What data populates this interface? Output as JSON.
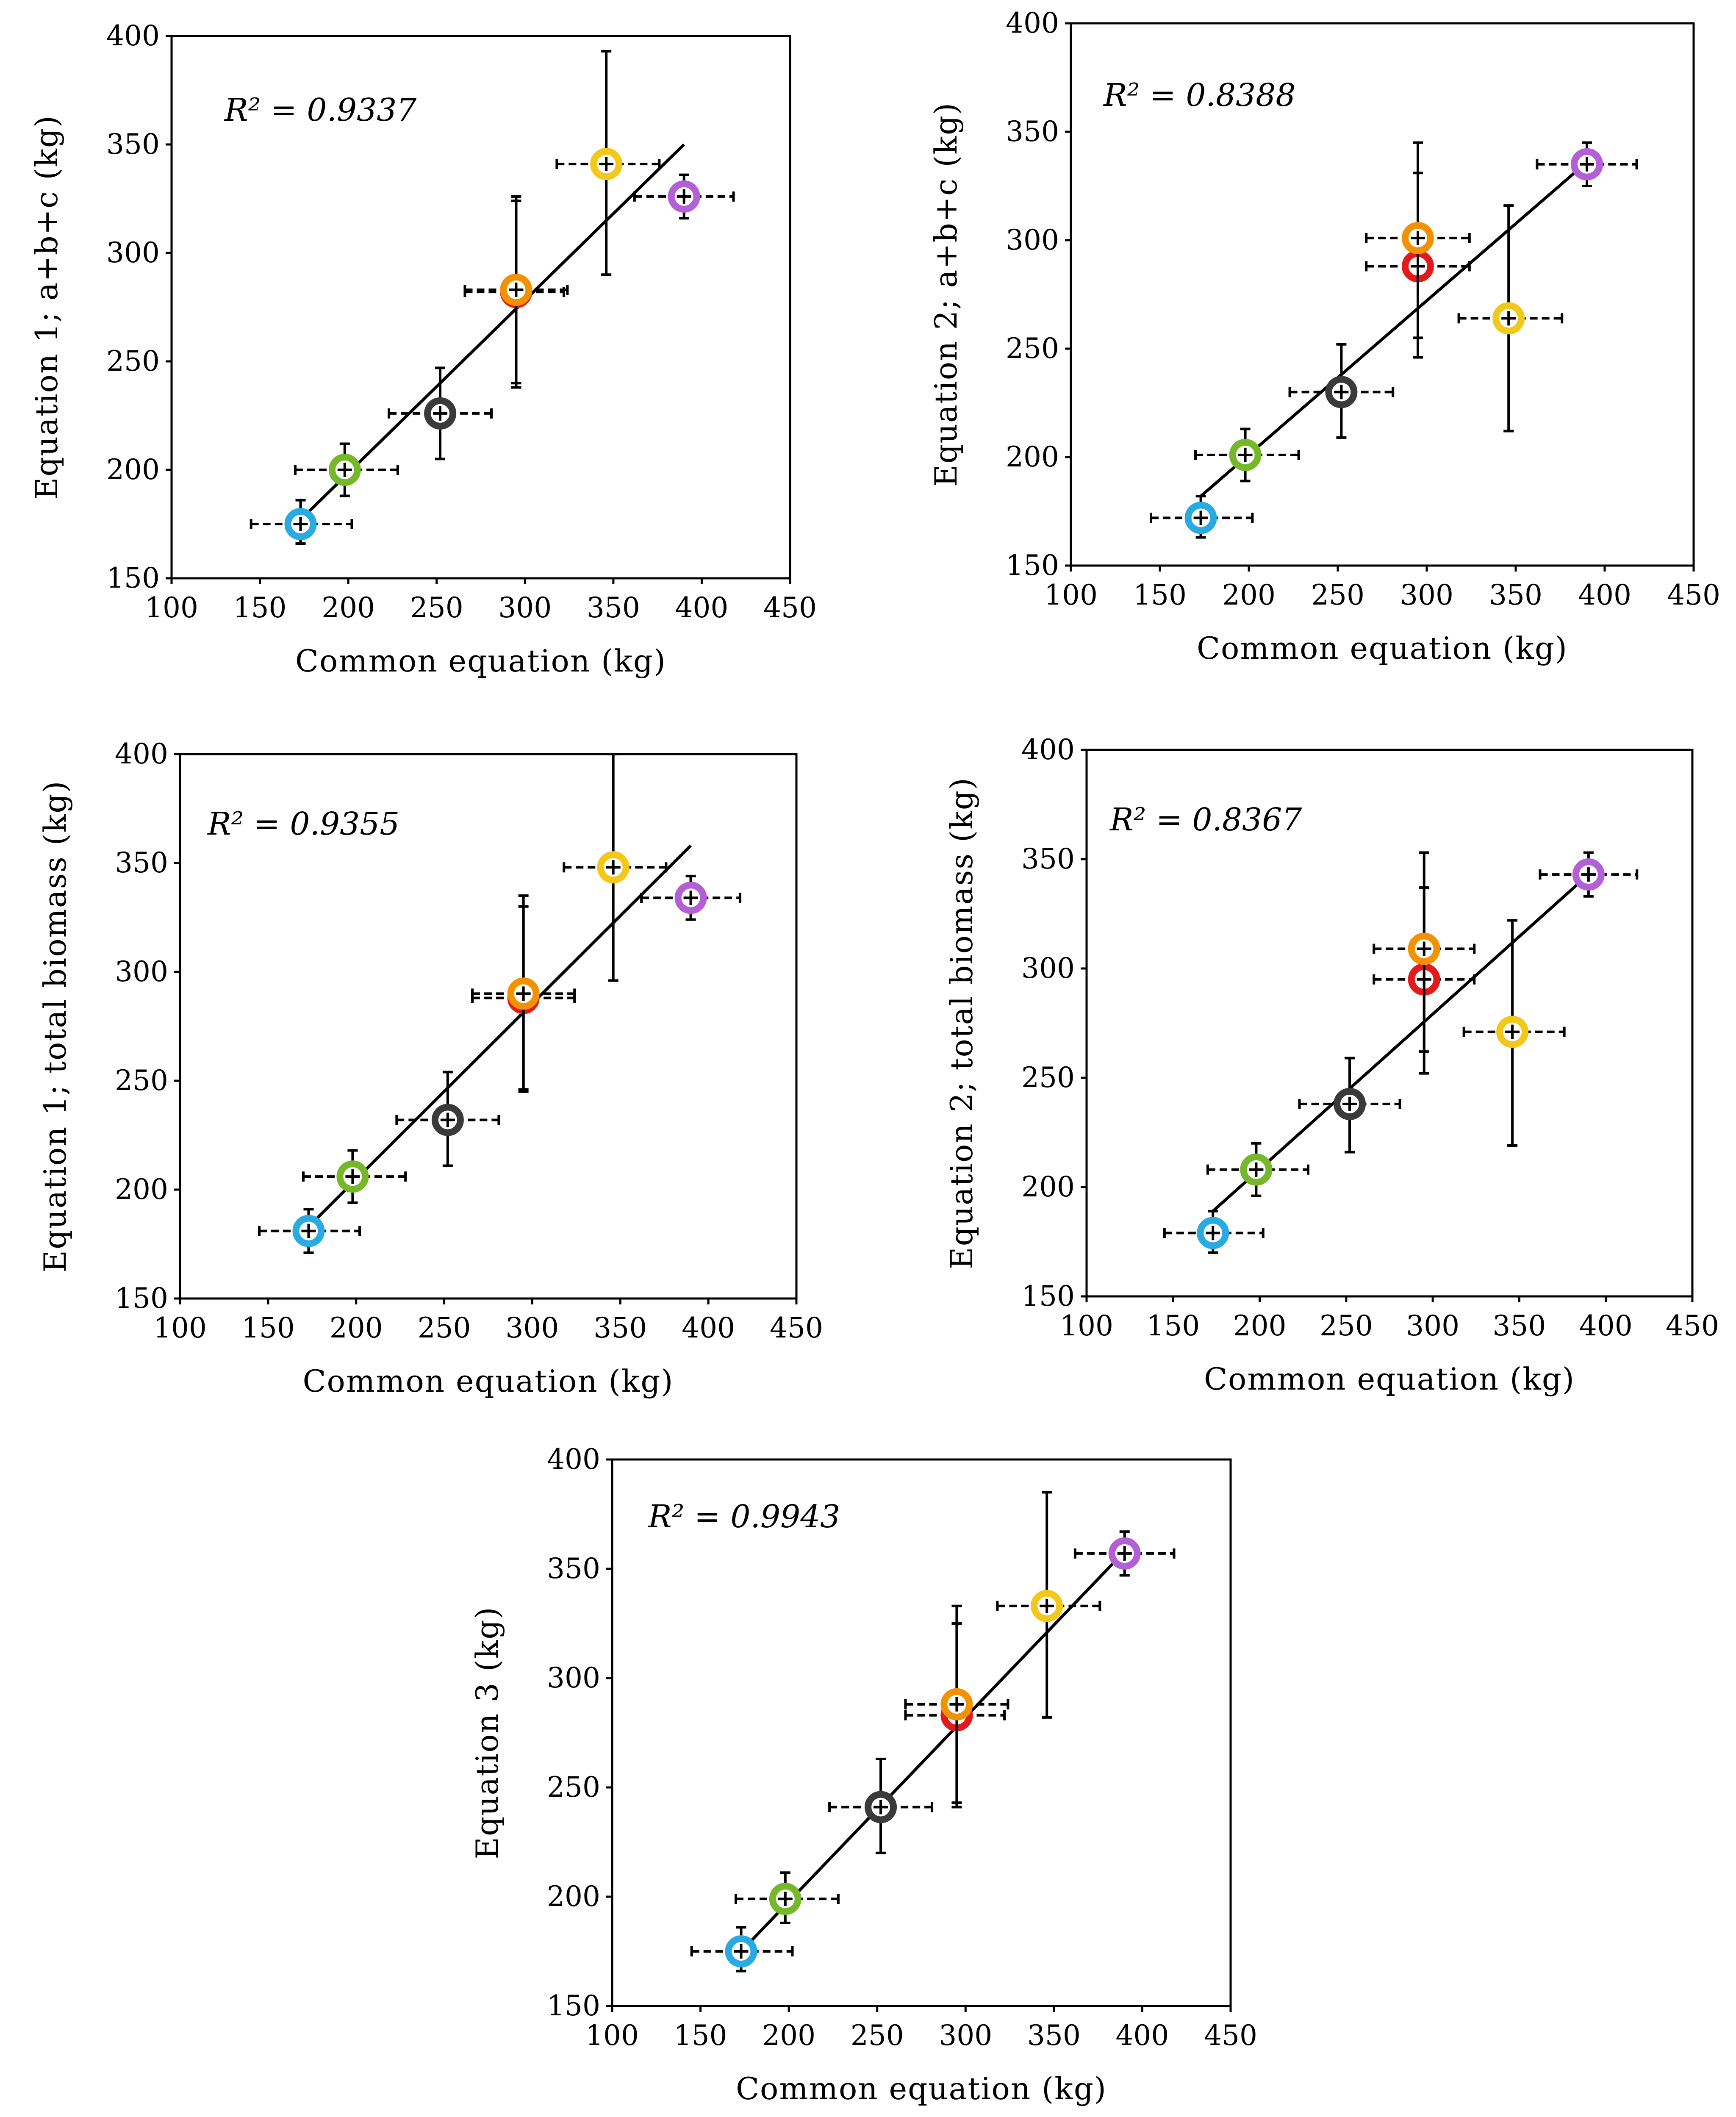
{
  "figure": {
    "colors": {
      "blue": "#29abe2",
      "green": "#76b82a",
      "dark": "#3a3a3a",
      "red": "#e31a1c",
      "orange": "#f39200",
      "yellow": "#f2c81b",
      "purple": "#b35fd6",
      "axis": "#000000"
    }
  },
  "chart_data": [
    {
      "type": "scatter",
      "title": "",
      "xlabel": "Common equation (kg)",
      "ylabel": "Equation 1; a+b+c (kg)",
      "xlim": [
        100,
        450
      ],
      "ylim": [
        150,
        400
      ],
      "xticks": [
        "100",
        "150",
        "200",
        "250",
        "300",
        "350",
        "400",
        "450"
      ],
      "yticks": [
        "150",
        "200",
        "250",
        "300",
        "350",
        "400"
      ],
      "r2_label": "R² = 0.9337",
      "trendline": {
        "x": [
          173,
          390
        ],
        "y": [
          177,
          350
        ]
      },
      "series": [
        {
          "name": "blue",
          "color": "#29abe2",
          "x": 173,
          "y": 175,
          "xerr": [
            145,
            202
          ],
          "yerr": [
            166,
            186
          ]
        },
        {
          "name": "green",
          "color": "#76b82a",
          "x": 198,
          "y": 200,
          "xerr": [
            170,
            228
          ],
          "yerr": [
            188,
            212
          ]
        },
        {
          "name": "dark",
          "color": "#3a3a3a",
          "x": 252,
          "y": 226,
          "xerr": [
            223,
            281
          ],
          "yerr": [
            205,
            247
          ]
        },
        {
          "name": "red",
          "color": "#e31a1c",
          "x": 295,
          "y": 282,
          "xerr": [
            266,
            322
          ],
          "yerr": [
            238,
            326
          ]
        },
        {
          "name": "orange",
          "color": "#f39200",
          "x": 295,
          "y": 283,
          "xerr": [
            266,
            324
          ],
          "yerr": [
            240,
            324
          ]
        },
        {
          "name": "yellow",
          "color": "#f2c81b",
          "x": 346,
          "y": 341,
          "xerr": [
            318,
            376
          ],
          "yerr": [
            290,
            393
          ]
        },
        {
          "name": "purple",
          "color": "#b35fd6",
          "x": 390,
          "y": 326,
          "xerr": [
            362,
            418
          ],
          "yerr": [
            316,
            336
          ]
        }
      ]
    },
    {
      "type": "scatter",
      "title": "",
      "xlabel": "Common equation (kg)",
      "ylabel": "Equation 2; a+b+c (kg)",
      "xlim": [
        100,
        450
      ],
      "ylim": [
        150,
        400
      ],
      "xticks": [
        "100",
        "150",
        "200",
        "250",
        "300",
        "350",
        "400",
        "450"
      ],
      "yticks": [
        "150",
        "200",
        "250",
        "300",
        "350",
        "400"
      ],
      "r2_label": "R² = 0.8388",
      "trendline": {
        "x": [
          173,
          390
        ],
        "y": [
          182,
          336
        ]
      },
      "series": [
        {
          "name": "blue",
          "color": "#29abe2",
          "x": 173,
          "y": 172,
          "xerr": [
            145,
            202
          ],
          "yerr": [
            163,
            182
          ]
        },
        {
          "name": "green",
          "color": "#76b82a",
          "x": 198,
          "y": 201,
          "xerr": [
            170,
            228
          ],
          "yerr": [
            189,
            213
          ]
        },
        {
          "name": "dark",
          "color": "#3a3a3a",
          "x": 252,
          "y": 230,
          "xerr": [
            223,
            281
          ],
          "yerr": [
            209,
            252
          ]
        },
        {
          "name": "red",
          "color": "#e31a1c",
          "x": 295,
          "y": 288,
          "xerr": [
            266,
            324
          ],
          "yerr": [
            246,
            331
          ]
        },
        {
          "name": "orange",
          "color": "#f39200",
          "x": 295,
          "y": 301,
          "xerr": [
            266,
            324
          ],
          "yerr": [
            255,
            345
          ]
        },
        {
          "name": "yellow",
          "color": "#f2c81b",
          "x": 346,
          "y": 264,
          "xerr": [
            318,
            376
          ],
          "yerr": [
            212,
            316
          ]
        },
        {
          "name": "purple",
          "color": "#b35fd6",
          "x": 390,
          "y": 335,
          "xerr": [
            362,
            418
          ],
          "yerr": [
            325,
            345
          ]
        }
      ]
    },
    {
      "type": "scatter",
      "title": "",
      "xlabel": "Common equation (kg)",
      "ylabel": "Equation 1; total biomass (kg)",
      "xlim": [
        100,
        450
      ],
      "ylim": [
        150,
        400
      ],
      "xticks": [
        "100",
        "150",
        "200",
        "250",
        "300",
        "350",
        "400",
        "450"
      ],
      "yticks": [
        "150",
        "200",
        "250",
        "300",
        "350",
        "400"
      ],
      "r2_label": "R² = 0.9355",
      "trendline": {
        "x": [
          173,
          390
        ],
        "y": [
          183,
          358
        ]
      },
      "series": [
        {
          "name": "blue",
          "color": "#29abe2",
          "x": 173,
          "y": 181,
          "xerr": [
            145,
            202
          ],
          "yerr": [
            171,
            191
          ]
        },
        {
          "name": "green",
          "color": "#76b82a",
          "x": 198,
          "y": 206,
          "xerr": [
            170,
            228
          ],
          "yerr": [
            194,
            218
          ]
        },
        {
          "name": "dark",
          "color": "#3a3a3a",
          "x": 252,
          "y": 232,
          "xerr": [
            223,
            281
          ],
          "yerr": [
            211,
            254
          ]
        },
        {
          "name": "red",
          "color": "#e31a1c",
          "x": 295,
          "y": 288,
          "xerr": [
            266,
            324
          ],
          "yerr": [
            246,
            330
          ]
        },
        {
          "name": "orange",
          "color": "#f39200",
          "x": 295,
          "y": 290,
          "xerr": [
            266,
            324
          ],
          "yerr": [
            245,
            335
          ]
        },
        {
          "name": "yellow",
          "color": "#f2c81b",
          "x": 346,
          "y": 348,
          "xerr": [
            318,
            376
          ],
          "yerr": [
            296,
            400
          ]
        },
        {
          "name": "purple",
          "color": "#b35fd6",
          "x": 390,
          "y": 334,
          "xerr": [
            362,
            418
          ],
          "yerr": [
            324,
            344
          ]
        }
      ]
    },
    {
      "type": "scatter",
      "title": "",
      "xlabel": "Common equation (kg)",
      "ylabel": "Equation 2; total biomass (kg)",
      "xlim": [
        100,
        450
      ],
      "ylim": [
        150,
        400
      ],
      "xticks": [
        "100",
        "150",
        "200",
        "250",
        "300",
        "350",
        "400",
        "450"
      ],
      "yticks": [
        "150",
        "200",
        "250",
        "300",
        "350",
        "400"
      ],
      "r2_label": "R² = 0.8367",
      "trendline": {
        "x": [
          173,
          390
        ],
        "y": [
          189,
          343
        ]
      },
      "series": [
        {
          "name": "blue",
          "color": "#29abe2",
          "x": 173,
          "y": 179,
          "xerr": [
            145,
            202
          ],
          "yerr": [
            170,
            189
          ]
        },
        {
          "name": "green",
          "color": "#76b82a",
          "x": 198,
          "y": 208,
          "xerr": [
            170,
            228
          ],
          "yerr": [
            196,
            220
          ]
        },
        {
          "name": "dark",
          "color": "#3a3a3a",
          "x": 252,
          "y": 238,
          "xerr": [
            223,
            281
          ],
          "yerr": [
            216,
            259
          ]
        },
        {
          "name": "red",
          "color": "#e31a1c",
          "x": 295,
          "y": 295,
          "xerr": [
            266,
            324
          ],
          "yerr": [
            252,
            337
          ]
        },
        {
          "name": "orange",
          "color": "#f39200",
          "x": 295,
          "y": 309,
          "xerr": [
            266,
            324
          ],
          "yerr": [
            262,
            353
          ]
        },
        {
          "name": "yellow",
          "color": "#f2c81b",
          "x": 346,
          "y": 271,
          "xerr": [
            318,
            376
          ],
          "yerr": [
            219,
            322
          ]
        },
        {
          "name": "purple",
          "color": "#b35fd6",
          "x": 390,
          "y": 343,
          "xerr": [
            362,
            418
          ],
          "yerr": [
            333,
            353
          ]
        }
      ]
    },
    {
      "type": "scatter",
      "title": "",
      "xlabel": "Common equation (kg)",
      "ylabel": "Equation 3 (kg)",
      "xlim": [
        100,
        450
      ],
      "ylim": [
        150,
        400
      ],
      "xticks": [
        "100",
        "150",
        "200",
        "250",
        "300",
        "350",
        "400",
        "450"
      ],
      "yticks": [
        "150",
        "200",
        "250",
        "300",
        "350",
        "400"
      ],
      "r2_label": "R² = 0.9943",
      "trendline": {
        "x": [
          173,
          390
        ],
        "y": [
          175,
          358
        ]
      },
      "series": [
        {
          "name": "blue",
          "color": "#29abe2",
          "x": 173,
          "y": 175,
          "xerr": [
            145,
            202
          ],
          "yerr": [
            166,
            186
          ]
        },
        {
          "name": "green",
          "color": "#76b82a",
          "x": 198,
          "y": 199,
          "xerr": [
            170,
            228
          ],
          "yerr": [
            188,
            211
          ]
        },
        {
          "name": "dark",
          "color": "#3a3a3a",
          "x": 252,
          "y": 241,
          "xerr": [
            223,
            281
          ],
          "yerr": [
            220,
            263
          ]
        },
        {
          "name": "red",
          "color": "#e31a1c",
          "x": 295,
          "y": 283,
          "xerr": [
            266,
            322
          ],
          "yerr": [
            241,
            325
          ]
        },
        {
          "name": "orange",
          "color": "#f39200",
          "x": 295,
          "y": 288,
          "xerr": [
            266,
            324
          ],
          "yerr": [
            243,
            333
          ]
        },
        {
          "name": "yellow",
          "color": "#f2c81b",
          "x": 346,
          "y": 333,
          "xerr": [
            318,
            376
          ],
          "yerr": [
            282,
            385
          ]
        },
        {
          "name": "purple",
          "color": "#b35fd6",
          "x": 390,
          "y": 357,
          "xerr": [
            362,
            418
          ],
          "yerr": [
            347,
            367
          ]
        }
      ]
    }
  ]
}
